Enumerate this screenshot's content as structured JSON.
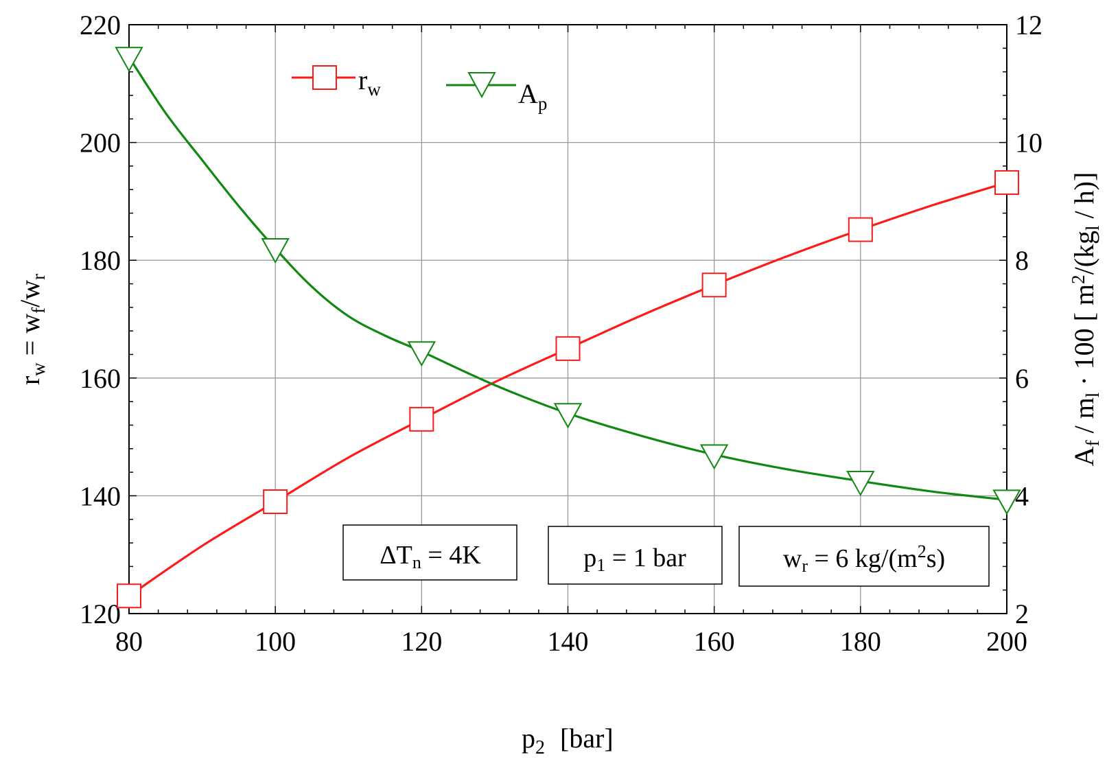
{
  "chart_data": {
    "type": "line",
    "title": "",
    "x": [
      80,
      100,
      120,
      140,
      160,
      180,
      200
    ],
    "xlabel": {
      "main": "p",
      "sub": "2",
      "units": "[bar]"
    },
    "xlim": [
      80,
      200
    ],
    "xticks": [
      80,
      100,
      120,
      140,
      160,
      180,
      200
    ],
    "ylim_left": [
      120,
      220
    ],
    "yticks_left": [
      120,
      140,
      160,
      180,
      200,
      220
    ],
    "ylabel_left": {
      "r": "r",
      "r_sub": "w",
      "eq": " = w",
      "f_sub": "f",
      "slash": "/w",
      "r_sub2": "r"
    },
    "ylim_right": [
      2,
      12
    ],
    "yticks_right": [
      2,
      4,
      6,
      8,
      10,
      12
    ],
    "ylabel_right": {
      "a": "A",
      "a_sub": "f",
      "mid": " / m",
      "m_sub": "l",
      "dot": " · 100 [ m",
      "sup": "2",
      "kg": "/(kg",
      "kg_sub": "l",
      "end": " / h)]"
    },
    "grid": true,
    "series": [
      {
        "name": "r_w",
        "label": "r",
        "label_sub": "w",
        "color": "#ff1a1a",
        "marker": "square",
        "axis": "left",
        "values": [
          123,
          139,
          153,
          165,
          175.8,
          185.2,
          193.2
        ],
        "curve": [
          [
            80,
            123
          ],
          [
            90,
            131.5
          ],
          [
            100,
            139
          ],
          [
            110,
            146.5
          ],
          [
            120,
            153
          ],
          [
            130,
            159.3
          ],
          [
            140,
            165
          ],
          [
            150,
            170.6
          ],
          [
            160,
            175.8
          ],
          [
            170,
            180.7
          ],
          [
            180,
            185.2
          ],
          [
            190,
            189.4
          ],
          [
            200,
            193.2
          ]
        ]
      },
      {
        "name": "A_p",
        "label": "A",
        "label_sub": "p",
        "color": "#118811",
        "marker": "triangle-down",
        "axis": "right",
        "values": [
          11.45,
          8.2,
          6.45,
          5.4,
          4.7,
          4.25,
          3.93
        ],
        "curve": [
          [
            80,
            11.45
          ],
          [
            85,
            10.5
          ],
          [
            90,
            9.7
          ],
          [
            95,
            8.92
          ],
          [
            100,
            8.2
          ],
          [
            105,
            7.55
          ],
          [
            110,
            7.05
          ],
          [
            115,
            6.72
          ],
          [
            120,
            6.45
          ],
          [
            130,
            5.88
          ],
          [
            140,
            5.4
          ],
          [
            150,
            5.02
          ],
          [
            160,
            4.7
          ],
          [
            170,
            4.45
          ],
          [
            180,
            4.25
          ],
          [
            190,
            4.07
          ],
          [
            200,
            3.93
          ]
        ]
      }
    ],
    "annotations": [
      {
        "id": "dT",
        "pre": "ΔT",
        "sub": "n",
        "post": " = 4K"
      },
      {
        "id": "p1",
        "pre": "p",
        "sub": "1",
        "post": " = 1 bar"
      },
      {
        "id": "wr",
        "pre": "w",
        "sub": "r",
        "post": " = 6 kg/(m",
        "sup": "2",
        "tail": "s)"
      }
    ],
    "colors": {
      "frame": "#000000",
      "grid": "#999999"
    }
  }
}
